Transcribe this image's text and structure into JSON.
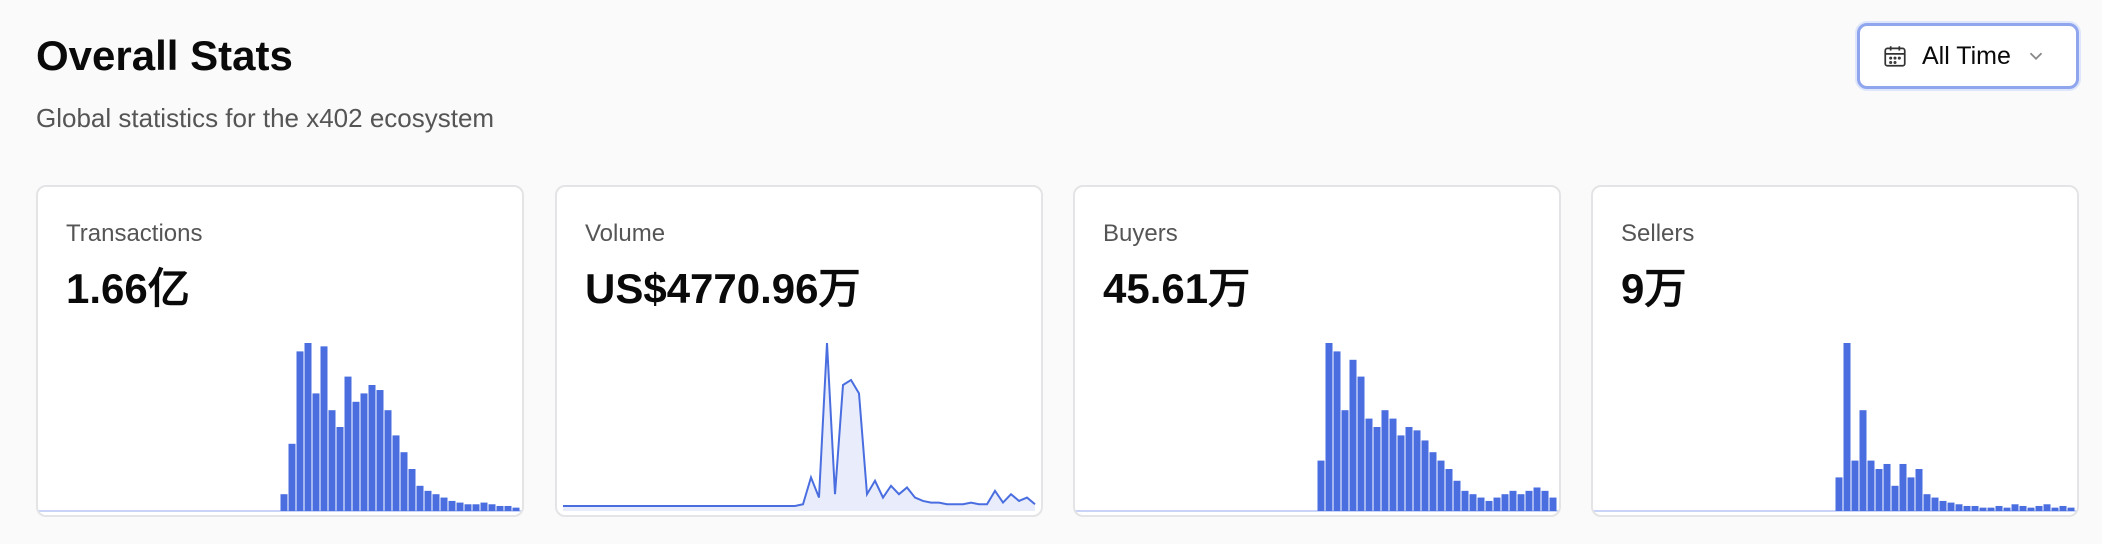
{
  "header": {
    "title": "Overall Stats",
    "subtitle": "Global statistics for the x402 ecosystem"
  },
  "filter": {
    "label": "All Time"
  },
  "cards": [
    {
      "label": "Transactions",
      "value": "1.66亿",
      "chart": {
        "type": "bar",
        "color": "#4a6ee0",
        "values": [
          0,
          0,
          0,
          0,
          0,
          0,
          0,
          0,
          0,
          0,
          0,
          0,
          0,
          0,
          0,
          0,
          0,
          0,
          0,
          0,
          0,
          0,
          0,
          0,
          0,
          0,
          0,
          0,
          0,
          0,
          10,
          40,
          95,
          100,
          70,
          98,
          60,
          50,
          80,
          65,
          70,
          75,
          72,
          60,
          45,
          35,
          25,
          15,
          12,
          10,
          8,
          6,
          5,
          4,
          4,
          5,
          4,
          3,
          3,
          2
        ]
      }
    },
    {
      "label": "Volume",
      "value": "US$4770.96万",
      "chart": {
        "type": "line",
        "color": "#4a6ee0",
        "values": [
          3,
          3,
          3,
          3,
          3,
          3,
          3,
          3,
          3,
          3,
          3,
          3,
          3,
          3,
          3,
          3,
          3,
          3,
          3,
          3,
          3,
          3,
          3,
          3,
          3,
          3,
          3,
          3,
          3,
          3,
          4,
          20,
          8,
          100,
          10,
          75,
          78,
          70,
          10,
          18,
          8,
          15,
          10,
          14,
          8,
          6,
          5,
          5,
          4,
          4,
          4,
          5,
          4,
          4,
          12,
          5,
          10,
          6,
          8,
          4
        ]
      }
    },
    {
      "label": "Buyers",
      "value": "45.61万",
      "chart": {
        "type": "bar",
        "color": "#4a6ee0",
        "values": [
          0,
          0,
          0,
          0,
          0,
          0,
          0,
          0,
          0,
          0,
          0,
          0,
          0,
          0,
          0,
          0,
          0,
          0,
          0,
          0,
          0,
          0,
          0,
          0,
          0,
          0,
          0,
          0,
          0,
          0,
          30,
          100,
          95,
          60,
          90,
          80,
          55,
          50,
          60,
          55,
          45,
          50,
          48,
          42,
          35,
          30,
          25,
          18,
          12,
          10,
          8,
          6,
          8,
          10,
          12,
          10,
          12,
          14,
          12,
          8
        ]
      }
    },
    {
      "label": "Sellers",
      "value": "9万",
      "chart": {
        "type": "bar",
        "color": "#4a6ee0",
        "values": [
          0,
          0,
          0,
          0,
          0,
          0,
          0,
          0,
          0,
          0,
          0,
          0,
          0,
          0,
          0,
          0,
          0,
          0,
          0,
          0,
          0,
          0,
          0,
          0,
          0,
          0,
          0,
          0,
          0,
          0,
          20,
          100,
          30,
          60,
          30,
          25,
          28,
          15,
          28,
          20,
          25,
          10,
          8,
          6,
          5,
          4,
          3,
          3,
          2,
          2,
          3,
          2,
          4,
          3,
          2,
          3,
          4,
          2,
          3,
          2
        ]
      }
    }
  ]
}
